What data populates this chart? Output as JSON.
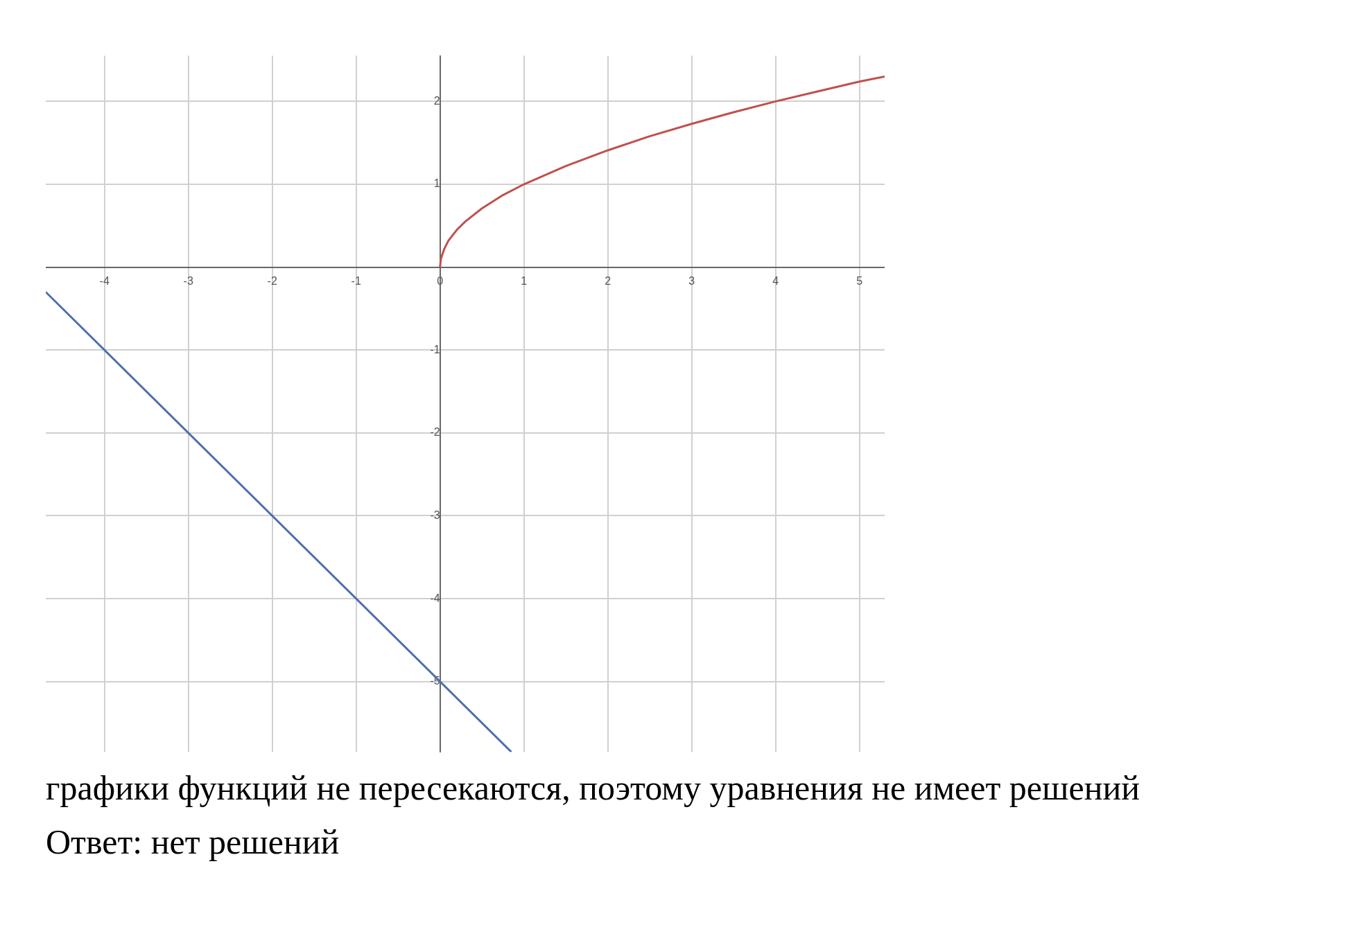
{
  "chart_data": {
    "type": "line",
    "xlim": [
      -4.7,
      5.3
    ],
    "ylim": [
      -5.85,
      2.55
    ],
    "xticks": [
      -4,
      -3,
      -2,
      -1,
      0,
      1,
      2,
      3,
      4,
      5
    ],
    "yticks": [
      -5,
      -4,
      -3,
      -2,
      -1,
      1,
      2
    ],
    "grid": true,
    "marker": "none",
    "legend": false,
    "series": [
      {
        "color": "#c0504d",
        "x": [
          0,
          0.01,
          0.05,
          0.1,
          0.2,
          0.3,
          0.5,
          0.75,
          1,
          1.5,
          2,
          2.5,
          3,
          3.5,
          4,
          4.5,
          5,
          5.3
        ],
        "values": [
          0,
          0.1,
          0.22,
          0.32,
          0.45,
          0.55,
          0.71,
          0.87,
          1,
          1.22,
          1.41,
          1.58,
          1.73,
          1.87,
          2,
          2.12,
          2.24,
          2.3
        ]
      },
      {
        "color": "#4f6fad",
        "x": [
          -4.7,
          0.85
        ],
        "values": [
          -0.3,
          -5.85
        ]
      }
    ],
    "annotations": [
      "графики функций не пересекаются, поэтому уравнения не имеет решений",
      "Ответ: нет решений"
    ]
  }
}
